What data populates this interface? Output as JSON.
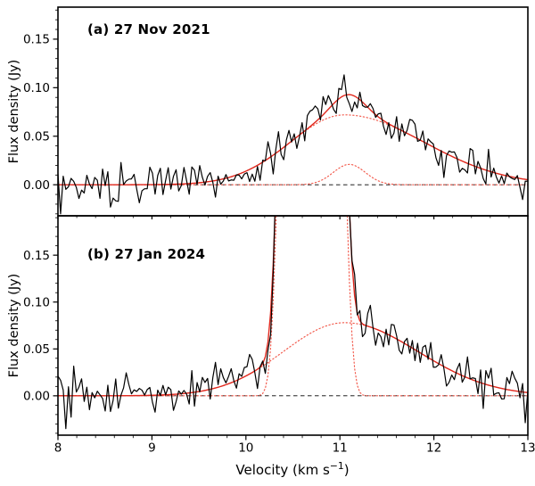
{
  "figure": {
    "background": "#ffffff",
    "xlabel_prefix": "Velocity (km s",
    "xlabel_sup": "−1",
    "xlabel_suffix": ")"
  },
  "chart_data": {
    "type": "line",
    "title": "",
    "description": "Two vertically stacked spectral-line panels sharing a common velocity axis. Black noisy line = observed spectrum, solid red line = total fit, dotted red lines = individual fit components, black dashed line = zero flux level.",
    "xlabel": "Velocity (km s⁻¹)",
    "ylabel": "Flux density (Jy)",
    "xlim": [
      8,
      13
    ],
    "x_ticks": [
      {
        "value": 8,
        "label": "8"
      },
      {
        "value": 9,
        "label": "9"
      },
      {
        "value": 10,
        "label": "10"
      },
      {
        "value": 11,
        "label": "11"
      },
      {
        "value": 12,
        "label": "12"
      },
      {
        "value": 13,
        "label": "13"
      }
    ],
    "x_minor_step": 0.2,
    "grid": false,
    "legend": "none",
    "series_styles": {
      "observed": {
        "name": "observed spectrum",
        "color": "#000000",
        "line": "solid",
        "width": 1.2
      },
      "fit": {
        "name": "total fit",
        "color": "#e0291e",
        "line": "solid",
        "width": 1.4
      },
      "component": {
        "name": "fit component",
        "color": "#f25749",
        "line": "dotted",
        "width": 1.15
      }
    },
    "zero_line": {
      "value": 0,
      "style": "dashed",
      "color": "#000000"
    },
    "panels": [
      {
        "id": "a",
        "label": "(a) 27 Nov 2021",
        "ylim": [
          -0.032,
          0.183
        ],
        "y_ticks": [
          {
            "value": 0.0,
            "label": "0.00"
          },
          {
            "value": 0.05,
            "label": "0.05"
          },
          {
            "value": 0.1,
            "label": "0.10"
          },
          {
            "value": 0.15,
            "label": "0.15"
          }
        ],
        "y_minor_step": 0.01,
        "n_points": 180,
        "noise_sigma": 0.011,
        "noise_seed": 11272021,
        "peak_flux_jy": 0.09,
        "peak_velocity_kms": 11.1,
        "components": [
          {
            "name": "broad component",
            "shape": "gaussian",
            "amplitude": 0.072,
            "center": 11.05,
            "sigma_left": 0.58,
            "sigma_right": 0.85,
            "power": 2
          },
          {
            "name": "narrow component",
            "shape": "gaussian",
            "amplitude": 0.021,
            "center": 11.1,
            "sigma_left": 0.17,
            "sigma_right": 0.17,
            "power": 2
          }
        ]
      },
      {
        "id": "b",
        "label": "(b) 27 Jan 2024",
        "ylim": [
          -0.042,
          0.192
        ],
        "y_ticks": [
          {
            "value": 0.0,
            "label": "0.00"
          },
          {
            "value": 0.05,
            "label": "0.05"
          },
          {
            "value": 0.1,
            "label": "0.10"
          },
          {
            "value": 0.15,
            "label": "0.15"
          }
        ],
        "y_minor_step": 0.01,
        "n_points": 180,
        "noise_sigma": 0.012,
        "noise_seed": 1272024,
        "peak_flux_jy": "off-scale (> 0.19, narrow feature clipped between ~10.3 and ~11.1 km/s)",
        "components": [
          {
            "name": "broad component",
            "shape": "gaussian",
            "amplitude": 0.078,
            "center": 11.05,
            "sigma_left": 0.65,
            "sigma_right": 0.78,
            "power": 2
          },
          {
            "name": "narrow maser component",
            "shape": "super-gaussian",
            "amplitude": 1.0,
            "center": 10.7,
            "sigma_left": 0.28,
            "sigma_right": 0.28,
            "power": 4
          }
        ]
      }
    ]
  }
}
